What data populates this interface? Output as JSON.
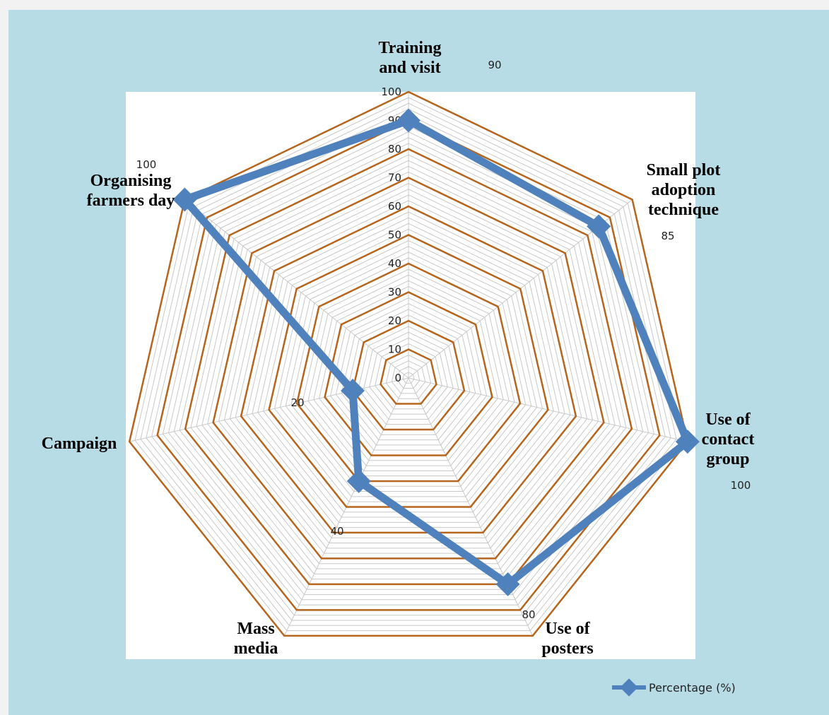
{
  "colors": {
    "page_background": "#f2f2f2",
    "chart_background": "#b7dce6",
    "plot_background": "#ffffff",
    "major_grid": "#b5651d",
    "minor_grid": "#c8c8c8",
    "series": "#4f81bd"
  },
  "chart_data": {
    "type": "radar",
    "title": "",
    "categories": [
      "Training and visit",
      "Small plot adoption technique",
      "Use of contact group",
      "Use of posters",
      "Mass media",
      "Campaign",
      "Organising farmers day"
    ],
    "category_lines": [
      [
        "Training",
        "and visit"
      ],
      [
        "Small plot",
        "adoption",
        "technique"
      ],
      [
        "Use of",
        "contact",
        "group"
      ],
      [
        "Use of",
        "posters"
      ],
      [
        "Mass",
        "media"
      ],
      [
        "Campaign"
      ],
      [
        "Organising",
        "farmers day"
      ]
    ],
    "series": [
      {
        "name": "Percentage (%)",
        "values": [
          90,
          85,
          100,
          80,
          40,
          20,
          100
        ],
        "data_labels": [
          "90",
          "85",
          "100",
          "80",
          "40",
          "20",
          "100"
        ]
      }
    ],
    "rlim": [
      0,
      100
    ],
    "major_step": 10,
    "minor_step": 2,
    "tick_labels": [
      "0",
      "10",
      "20",
      "30",
      "40",
      "50",
      "60",
      "70",
      "80",
      "90",
      "100"
    ],
    "grid": true,
    "legend_position": "bottom-right"
  }
}
